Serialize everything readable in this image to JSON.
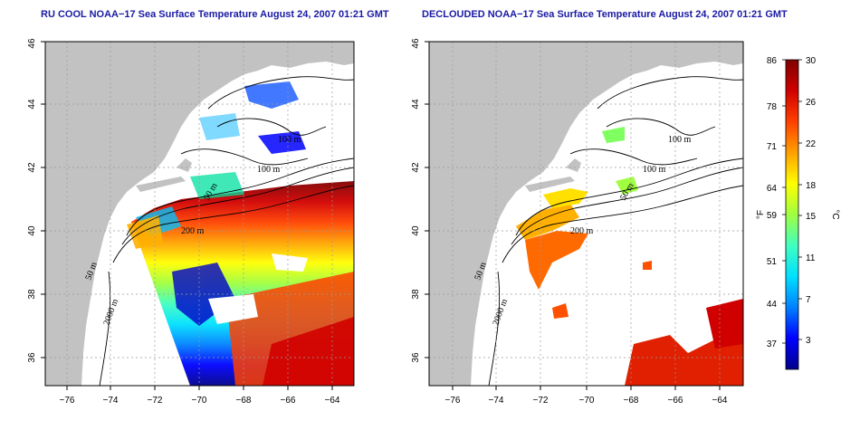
{
  "panels": [
    {
      "title": "RU COOL NOAA−17 Sea Surface Temperature August 24, 2007 01:21 GMT"
    },
    {
      "title": "DECLOUDED NOAA−17 Sea Surface Temperature August 24, 2007 01:21 GMT"
    }
  ],
  "axes": {
    "lon_ticks": [
      "−76",
      "−74",
      "−72",
      "−70",
      "−68",
      "−66",
      "−64"
    ],
    "lat_ticks": [
      "36",
      "38",
      "40",
      "42",
      "44",
      "46"
    ]
  },
  "contour_labels": {
    "left": [
      "100 m",
      "100 m",
      "50 m",
      "200 m",
      "50 m",
      "2000 m"
    ],
    "right": [
      "100 m",
      "100 m",
      "50 m",
      "200 m",
      "50 m",
      "2000 m"
    ]
  },
  "colorbar": {
    "left_unit": "°F",
    "right_unit": "°C",
    "f_ticks": [
      "86",
      "78",
      "71",
      "64",
      "59",
      "51",
      "44",
      "37"
    ],
    "c_ticks": [
      "30",
      "26",
      "22",
      "18",
      "15",
      "11",
      "7",
      "3"
    ],
    "colors": [
      "#00008b",
      "#0000ff",
      "#0080ff",
      "#00e0ff",
      "#40ffc0",
      "#a0ff40",
      "#ffff00",
      "#ffa000",
      "#ff4000",
      "#d00000",
      "#800000"
    ]
  },
  "colors": {
    "land": "#c2c2c2",
    "title": "#1a1aa6"
  }
}
